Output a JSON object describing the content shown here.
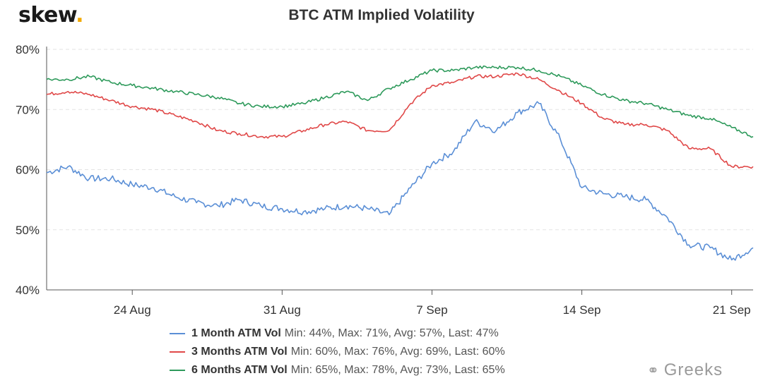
{
  "logo": {
    "text": "skew",
    "dot": "."
  },
  "chart_data": {
    "type": "line",
    "title": "BTC ATM Implied Volatility",
    "xlabel": "",
    "ylabel": "",
    "ylim": [
      40,
      80
    ],
    "y_ticks": [
      40,
      50,
      60,
      70,
      80
    ],
    "y_tick_labels": [
      "40%",
      "50%",
      "60%",
      "70%",
      "80%"
    ],
    "xlim": [
      "2020-08-20",
      "2020-09-22"
    ],
    "x_ticks": [
      "2020-08-24",
      "2020-08-31",
      "2020-09-07",
      "2020-09-14",
      "2020-09-21"
    ],
    "x_tick_labels": [
      "24 Aug",
      "31 Aug",
      "7 Sep",
      "14 Sep",
      "21 Sep"
    ],
    "grid": true,
    "legend_position": "bottom",
    "x": [
      "2020-08-20",
      "2020-08-21",
      "2020-08-22",
      "2020-08-23",
      "2020-08-24",
      "2020-08-25",
      "2020-08-26",
      "2020-08-27",
      "2020-08-28",
      "2020-08-29",
      "2020-08-30",
      "2020-08-31",
      "2020-09-01",
      "2020-09-02",
      "2020-09-03",
      "2020-09-04",
      "2020-09-05",
      "2020-09-06",
      "2020-09-07",
      "2020-09-08",
      "2020-09-09",
      "2020-09-10",
      "2020-09-11",
      "2020-09-12",
      "2020-09-13",
      "2020-09-14",
      "2020-09-15",
      "2020-09-16",
      "2020-09-17",
      "2020-09-18",
      "2020-09-19",
      "2020-09-20",
      "2020-09-21",
      "2020-09-22"
    ],
    "series": [
      {
        "name": "1 Month ATM Vol",
        "color": "#5b8fd6",
        "legend_stats": "Min: 44%, Max: 71%, Avg: 57%, Last: 47%",
        "values": [
          59.5,
          60.5,
          58.5,
          58.5,
          57.5,
          57,
          55.5,
          54.5,
          54,
          55,
          54,
          53.5,
          53,
          53.5,
          54,
          53.5,
          52.5,
          57,
          61,
          63,
          68,
          66.5,
          69.5,
          71,
          65,
          57,
          56,
          55.5,
          55,
          52,
          47.5,
          47,
          45,
          47
        ]
      },
      {
        "name": "3 Months ATM Vol",
        "color": "#e04848",
        "legend_stats": "Min: 60%, Max: 76%, Avg: 69%, Last: 60%",
        "values": [
          72.5,
          73,
          72.5,
          71.5,
          70.5,
          70,
          69,
          68,
          66.5,
          66,
          65.5,
          65.5,
          66.5,
          67.5,
          68,
          66.5,
          66.5,
          71,
          74,
          74.5,
          75.5,
          75.5,
          76,
          75,
          73,
          71,
          68.5,
          67.5,
          67.5,
          66.5,
          63.5,
          63.5,
          60.5,
          60.5
        ]
      },
      {
        "name": "6 Months ATM Vol",
        "color": "#2e9a5b",
        "legend_stats": "Min: 65%, Max: 78%, Avg: 73%, Last: 65%",
        "values": [
          75,
          75,
          75.5,
          74.5,
          74,
          73.5,
          73,
          72.5,
          72,
          71,
          70.5,
          70.5,
          71,
          72,
          73,
          71.5,
          73.5,
          75,
          76.5,
          76.5,
          77,
          77,
          77,
          76.5,
          75.5,
          74,
          72.5,
          71.5,
          71,
          70,
          69,
          68.5,
          67,
          65.5
        ]
      }
    ]
  },
  "watermark": {
    "icon": "wechat-icon",
    "text": "Greeks"
  }
}
